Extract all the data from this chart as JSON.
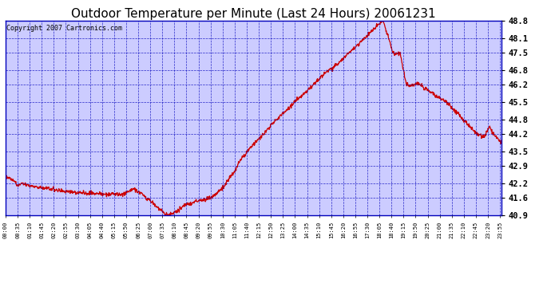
{
  "title": "Outdoor Temperature per Minute (Last 24 Hours) 20061231",
  "copyright_text": "Copyright 2007 Cartronics.com",
  "background_color": "#FFFFFF",
  "plot_background_color": "#CCCCFF",
  "line_color": "#CC0000",
  "grid_color": "#0000BB",
  "text_color": "#000000",
  "title_color": "#000000",
  "ylim": [
    40.9,
    48.8
  ],
  "yticks": [
    40.9,
    41.6,
    42.2,
    42.9,
    43.5,
    44.2,
    44.8,
    45.5,
    46.2,
    46.8,
    47.5,
    48.1,
    48.8
  ],
  "xlabel_fontsize": 5.0,
  "ylabel_fontsize": 7.5,
  "title_fontsize": 11,
  "copyright_fontsize": 6,
  "linewidth": 0.9
}
